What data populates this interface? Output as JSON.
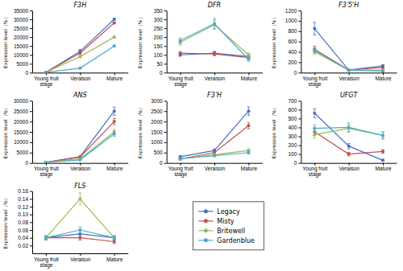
{
  "chart_data": [
    {
      "type": "line",
      "title": "F3H",
      "y_label": "Expression level（%）",
      "categories": [
        "Young fruit\nstage",
        "Veraison",
        "Mature"
      ],
      "ylim": [
        0,
        35000
      ],
      "yticks": [
        0,
        5000,
        10000,
        15000,
        20000,
        25000,
        30000,
        35000
      ],
      "marker": "circle",
      "series": [
        {
          "name": "Legacy",
          "color": "#4472c4",
          "values": [
            200,
            12000,
            30000
          ],
          "errors": [
            100,
            1000,
            600
          ]
        },
        {
          "name": "Misty",
          "color": "#c0504d",
          "values": [
            200,
            11000,
            28000
          ],
          "errors": [
            100,
            800,
            500
          ]
        },
        {
          "name": "Britewell",
          "color": "#9bbb59",
          "values": [
            200,
            9000,
            20000
          ],
          "errors": [
            100,
            600,
            500
          ]
        },
        {
          "name": "Gardenblue",
          "color": "#4bacc6",
          "values": [
            200,
            2500,
            15000
          ],
          "errors": [
            100,
            200,
            500
          ]
        }
      ]
    },
    {
      "type": "line",
      "title": "DFR",
      "y_label": "Expression level（%）",
      "categories": [
        "Young fruit\nstage",
        "Veraison",
        "Mature"
      ],
      "ylim": [
        0,
        350
      ],
      "yticks": [
        0,
        50,
        100,
        150,
        200,
        250,
        300,
        350
      ],
      "marker": "circle",
      "series": [
        {
          "color": "#4472c4",
          "values": [
            100,
            110,
            90
          ],
          "errors": [
            8,
            10,
            8
          ]
        },
        {
          "color": "#c0504d",
          "values": [
            110,
            105,
            85
          ],
          "errors": [
            8,
            10,
            8
          ]
        },
        {
          "color": "#9bbb59",
          "values": [
            170,
            270,
            100
          ],
          "errors": [
            15,
            25,
            10
          ]
        },
        {
          "color": "#4bacc6",
          "values": [
            180,
            275,
            75
          ],
          "errors": [
            15,
            30,
            10
          ]
        }
      ]
    },
    {
      "type": "line",
      "title": "F3ʹ5'H",
      "y_label": "Expression level（%）",
      "categories": [
        "Young fruit\nstage",
        "Veraison",
        "Mature"
      ],
      "ylim": [
        0,
        1200
      ],
      "yticks": [
        0,
        200,
        400,
        600,
        800,
        1000,
        1200
      ],
      "marker": "circle",
      "series": [
        {
          "color": "#4472c4",
          "values": [
            850,
            50,
            130
          ],
          "errors": [
            120,
            15,
            25
          ]
        },
        {
          "color": "#c0504d",
          "values": [
            450,
            50,
            100
          ],
          "errors": [
            60,
            15,
            20
          ]
        },
        {
          "color": "#9bbb59",
          "values": [
            400,
            50,
            50
          ],
          "errors": [
            50,
            15,
            10
          ]
        },
        {
          "color": "#4bacc6",
          "values": [
            430,
            45,
            30
          ],
          "errors": [
            50,
            10,
            10
          ]
        }
      ]
    },
    {
      "type": "line",
      "title": "ANS",
      "y_label": "Expression level（%）",
      "categories": [
        "Young fruit\nstage",
        "Veraison",
        "Mature"
      ],
      "ylim": [
        0,
        30000
      ],
      "yticks": [
        0,
        5000,
        10000,
        15000,
        20000,
        25000,
        30000
      ],
      "marker": "circle",
      "series": [
        {
          "color": "#4472c4",
          "values": [
            300,
            3000,
            25000
          ],
          "errors": [
            50,
            300,
            2000
          ]
        },
        {
          "color": "#c0504d",
          "values": [
            300,
            2800,
            20000
          ],
          "errors": [
            50,
            280,
            1500
          ]
        },
        {
          "color": "#9bbb59",
          "values": [
            300,
            2000,
            15000
          ],
          "errors": [
            50,
            200,
            1200
          ]
        },
        {
          "color": "#4bacc6",
          "values": [
            300,
            1500,
            14000
          ],
          "errors": [
            50,
            150,
            1200
          ]
        }
      ]
    },
    {
      "type": "line",
      "title": "F3ʹH",
      "y_label": "Expression level（%）",
      "categories": [
        "Young fruit\nstage",
        "Veraison",
        "Mature"
      ],
      "ylim": [
        0,
        3000
      ],
      "yticks": [
        0,
        500,
        1000,
        1500,
        2000,
        2500,
        3000
      ],
      "marker": "circle",
      "series": [
        {
          "color": "#4472c4",
          "values": [
            300,
            600,
            2500
          ],
          "errors": [
            50,
            80,
            200
          ]
        },
        {
          "color": "#c0504d",
          "values": [
            200,
            500,
            1800
          ],
          "errors": [
            50,
            60,
            150
          ]
        },
        {
          "color": "#9bbb59",
          "values": [
            200,
            400,
            600
          ],
          "errors": [
            50,
            50,
            80
          ]
        },
        {
          "color": "#4bacc6",
          "values": [
            200,
            350,
            500
          ],
          "errors": [
            50,
            40,
            70
          ]
        }
      ]
    },
    {
      "type": "line",
      "title": "UFGT",
      "y_label": "Expression level（%）",
      "categories": [
        "Young fruit\nstage",
        "Veraison",
        "Mature"
      ],
      "ylim": [
        0,
        700
      ],
      "yticks": [
        0,
        100,
        200,
        300,
        400,
        500,
        600,
        700
      ],
      "marker": "circle",
      "series": [
        {
          "color": "#4472c4",
          "values": [
            560,
            190,
            30
          ],
          "errors": [
            50,
            30,
            10
          ]
        },
        {
          "color": "#c0504d",
          "values": [
            350,
            100,
            130
          ],
          "errors": [
            40,
            20,
            20
          ]
        },
        {
          "color": "#9bbb59",
          "values": [
            320,
            390,
            310
          ],
          "errors": [
            40,
            40,
            40
          ]
        },
        {
          "color": "#4bacc6",
          "values": [
            390,
            400,
            310
          ],
          "errors": [
            40,
            50,
            40
          ]
        }
      ]
    },
    {
      "type": "line",
      "title": "FLS",
      "y_label": "Expression level（%）",
      "categories": [
        "Young fruit\nstage",
        "Veraison",
        "Mature"
      ],
      "ylim": [
        0,
        0.16
      ],
      "yticks": [
        0.02,
        0.04,
        0.06,
        0.08,
        {
          "value": 0.1,
          "label": "0.10"
        },
        0.12,
        0.14,
        0.16
      ],
      "marker": "circle",
      "series": [
        {
          "color": "#4472c4",
          "values": [
            0.04,
            0.05,
            0.04
          ],
          "errors": [
            0.005,
            0.008,
            0.005
          ]
        },
        {
          "color": "#c0504d",
          "values": [
            0.04,
            0.04,
            0.03
          ],
          "errors": [
            0.005,
            0.006,
            0.005
          ]
        },
        {
          "color": "#9bbb59",
          "values": [
            0.04,
            0.14,
            0.04
          ],
          "errors": [
            0.005,
            0.015,
            0.005
          ]
        },
        {
          "color": "#4bacc6",
          "values": [
            0.04,
            0.06,
            0.04
          ],
          "errors": [
            0.005,
            0.008,
            0.005
          ]
        }
      ]
    }
  ]
}
